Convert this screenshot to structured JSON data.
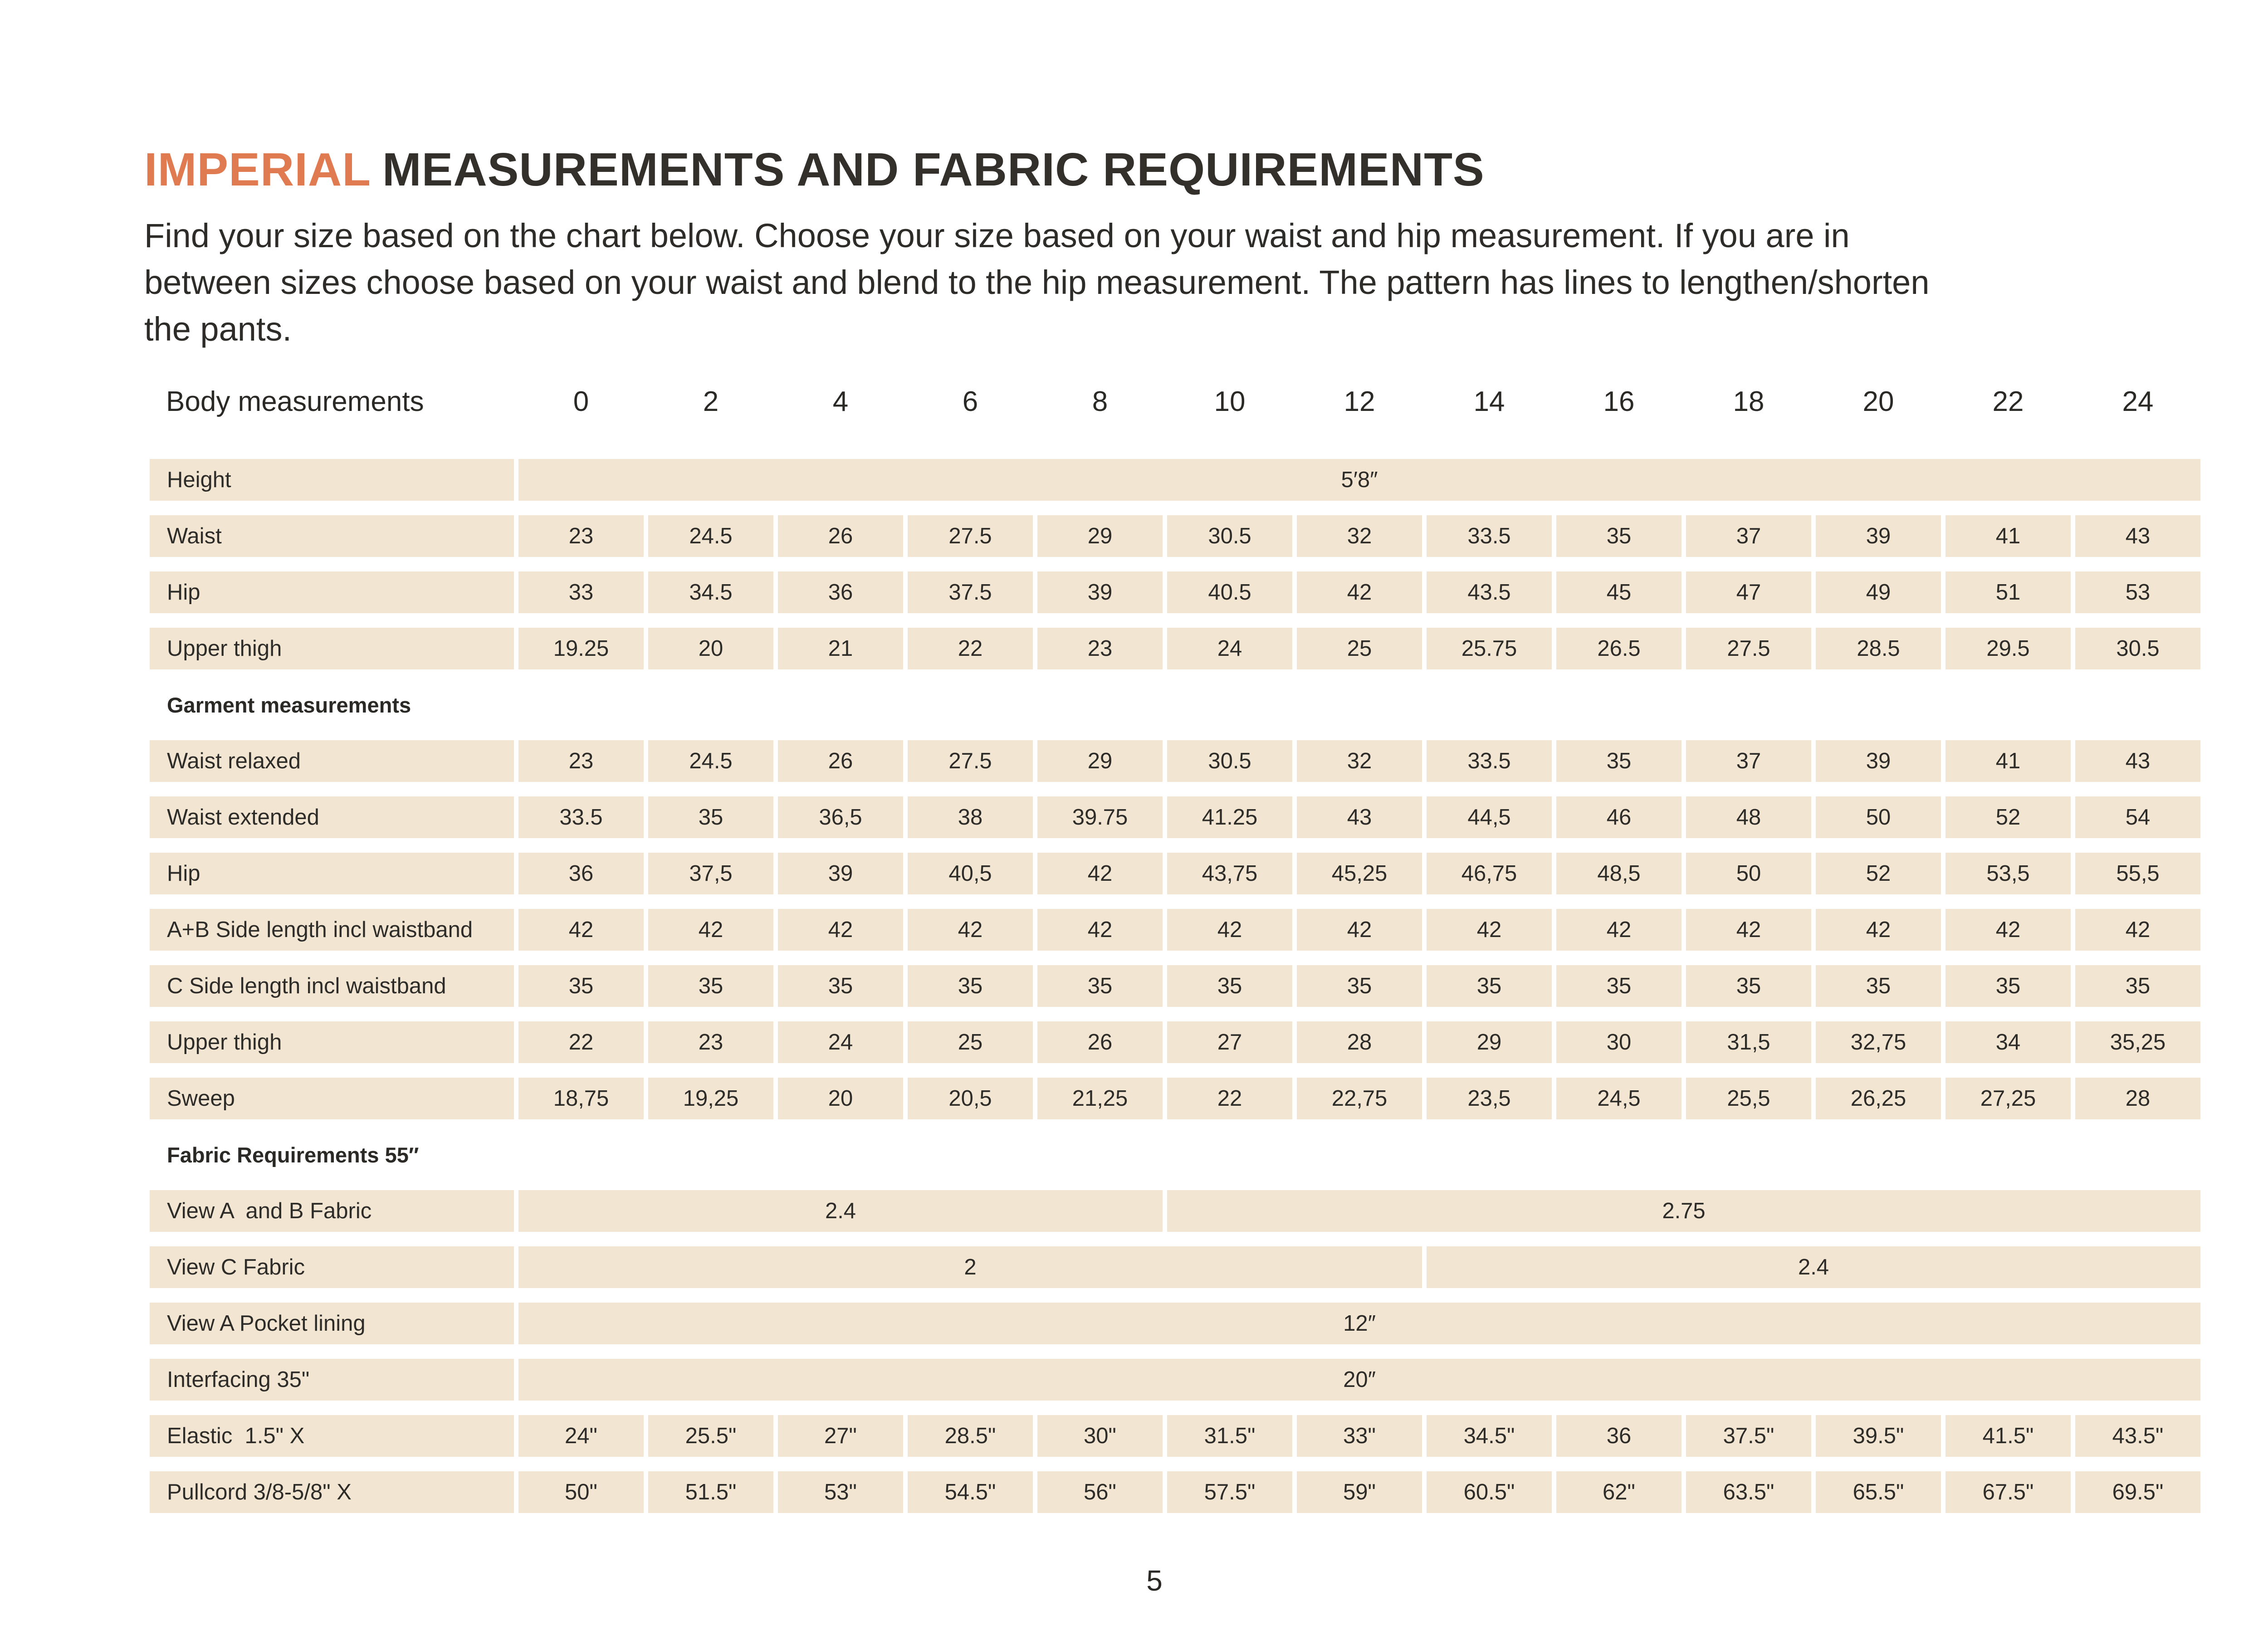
{
  "title": {
    "accent": "IMPERIAL",
    "rest": "MEASUREMENTS AND FABRIC REQUIREMENTS"
  },
  "intro_lines": [
    "Find your size based on the chart below. Choose your size based on your waist and hip measurement. If you are in",
    "between sizes choose based on your waist and blend to the hip measurement. The pattern has lines to lengthen/shorten",
    "the pants."
  ],
  "page_number": "5",
  "colors": {
    "accent_orange": "#e07a50",
    "cell_beige": "#f2e6d3",
    "text_dark": "#2e2c29"
  },
  "table": {
    "header_label": "Body measurements",
    "sizes": [
      "0",
      "2",
      "4",
      "6",
      "8",
      "10",
      "12",
      "14",
      "16",
      "18",
      "20",
      "22",
      "24"
    ],
    "rows": [
      {
        "type": "merged",
        "label": "Height",
        "spans": [
          {
            "cols": 13,
            "value": "5′8″"
          }
        ]
      },
      {
        "type": "values",
        "label": "Waist",
        "values": [
          "23",
          "24.5",
          "26",
          "27.5",
          "29",
          "30.5",
          "32",
          "33.5",
          "35",
          "37",
          "39",
          "41",
          "43"
        ]
      },
      {
        "type": "values",
        "label": "Hip",
        "values": [
          "33",
          "34.5",
          "36",
          "37.5",
          "39",
          "40.5",
          "42",
          "43.5",
          "45",
          "47",
          "49",
          "51",
          "53"
        ]
      },
      {
        "type": "values",
        "label": "Upper thigh",
        "values": [
          "19.25",
          "20",
          "21",
          "22",
          "23",
          "24",
          "25",
          "25.75",
          "26.5",
          "27.5",
          "28.5",
          "29.5",
          "30.5"
        ]
      },
      {
        "type": "section",
        "label": "Garment measurements"
      },
      {
        "type": "values",
        "label": "Waist relaxed",
        "values": [
          "23",
          "24.5",
          "26",
          "27.5",
          "29",
          "30.5",
          "32",
          "33.5",
          "35",
          "37",
          "39",
          "41",
          "43"
        ]
      },
      {
        "type": "values",
        "label": "Waist extended",
        "values": [
          "33.5",
          "35",
          "36,5",
          "38",
          "39.75",
          "41.25",
          "43",
          "44,5",
          "46",
          "48",
          "50",
          "52",
          "54"
        ]
      },
      {
        "type": "values",
        "label": "Hip",
        "values": [
          "36",
          "37,5",
          "39",
          "40,5",
          "42",
          "43,75",
          "45,25",
          "46,75",
          "48,5",
          "50",
          "52",
          "53,5",
          "55,5"
        ]
      },
      {
        "type": "values",
        "label": "A+B Side length incl waistband",
        "values": [
          "42",
          "42",
          "42",
          "42",
          "42",
          "42",
          "42",
          "42",
          "42",
          "42",
          "42",
          "42",
          "42"
        ]
      },
      {
        "type": "values",
        "label": "C Side length incl waistband",
        "values": [
          "35",
          "35",
          "35",
          "35",
          "35",
          "35",
          "35",
          "35",
          "35",
          "35",
          "35",
          "35",
          "35"
        ]
      },
      {
        "type": "values",
        "label": "Upper thigh",
        "values": [
          "22",
          "23",
          "24",
          "25",
          "26",
          "27",
          "28",
          "29",
          "30",
          "31,5",
          "32,75",
          "34",
          "35,25"
        ]
      },
      {
        "type": "values",
        "label": "Sweep",
        "values": [
          "18,75",
          "19,25",
          "20",
          "20,5",
          "21,25",
          "22",
          "22,75",
          "23,5",
          "24,5",
          "25,5",
          "26,25",
          "27,25",
          "28"
        ]
      },
      {
        "type": "section",
        "label": "Fabric Requirements 55″"
      },
      {
        "type": "merged",
        "label": "View A  and B Fabric",
        "spans": [
          {
            "cols": 5,
            "value": "2.4"
          },
          {
            "cols": 8,
            "value": "2.75"
          }
        ]
      },
      {
        "type": "merged",
        "label": "View C Fabric",
        "spans": [
          {
            "cols": 7,
            "value": "2"
          },
          {
            "cols": 6,
            "value": "2.4"
          }
        ]
      },
      {
        "type": "merged",
        "label": "View A Pocket lining",
        "spans": [
          {
            "cols": 13,
            "value": "12″"
          }
        ]
      },
      {
        "type": "merged",
        "label": "Interfacing 35\"",
        "spans": [
          {
            "cols": 13,
            "value": "20″"
          }
        ]
      },
      {
        "type": "values",
        "label": "Elastic  1.5\" X",
        "values": [
          "24\"",
          "25.5\"",
          "27\"",
          "28.5\"",
          "30\"",
          "31.5\"",
          "33\"",
          "34.5\"",
          "36",
          "37.5\"",
          "39.5\"",
          "41.5\"",
          "43.5\""
        ]
      },
      {
        "type": "values",
        "label": "Pullcord 3/8-5/8\" X",
        "values": [
          "50\"",
          "51.5\"",
          "53\"",
          "54.5\"",
          "56\"",
          "57.5\"",
          "59\"",
          "60.5\"",
          "62\"",
          "63.5\"",
          "65.5\"",
          "67.5\"",
          "69.5\""
        ]
      }
    ]
  }
}
